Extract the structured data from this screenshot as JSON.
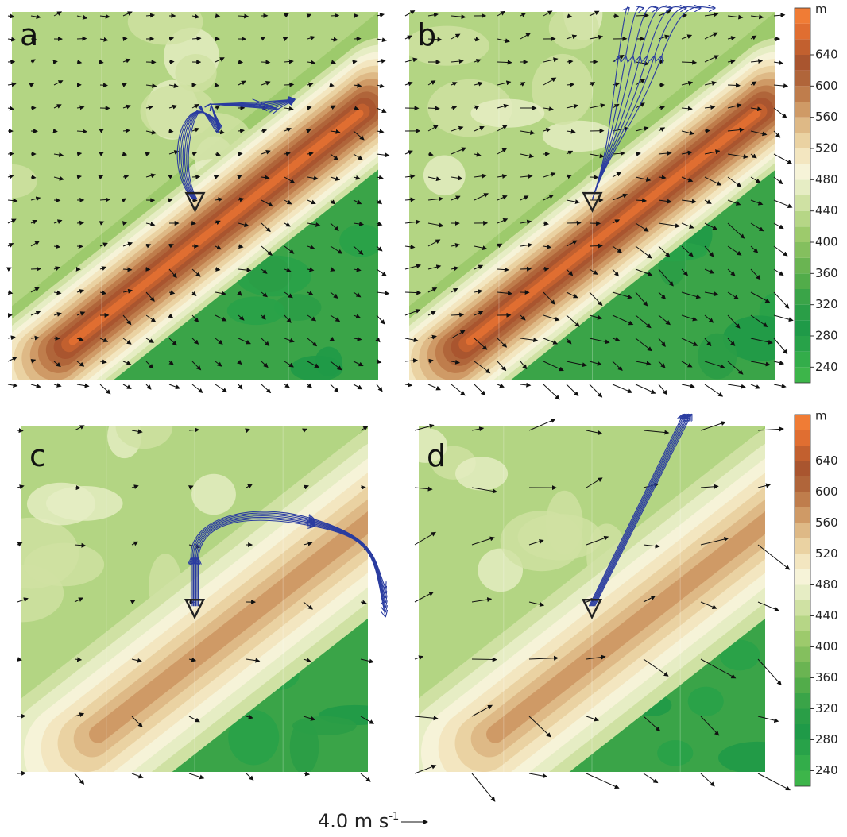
{
  "panels": [
    {
      "label": "a"
    },
    {
      "label": "b"
    },
    {
      "label": "c"
    },
    {
      "label": "d"
    }
  ],
  "colorbar": {
    "unit": "m",
    "lim": [
      220,
      700
    ],
    "step": 20,
    "ticks": [
      240,
      280,
      320,
      360,
      400,
      440,
      480,
      520,
      560,
      600,
      640
    ],
    "colors": [
      "#3db54a",
      "#33ad4a",
      "#28a249",
      "#1f9a48",
      "#2a9e47",
      "#3aa448",
      "#52ac4a",
      "#6ab452",
      "#84bf5e",
      "#9dca6c",
      "#b6d686",
      "#cfe1a3",
      "#e6edc4",
      "#f6f3d8",
      "#f3e6c0",
      "#ead2a2",
      "#deb986",
      "#cf9a66",
      "#bf7d4c",
      "#b0653a",
      "#a9552f",
      "#c2602f",
      "#e06e31",
      "#f07c35"
    ]
  },
  "scale": {
    "text": "4.0 m s",
    "superscript": "-1"
  }
}
